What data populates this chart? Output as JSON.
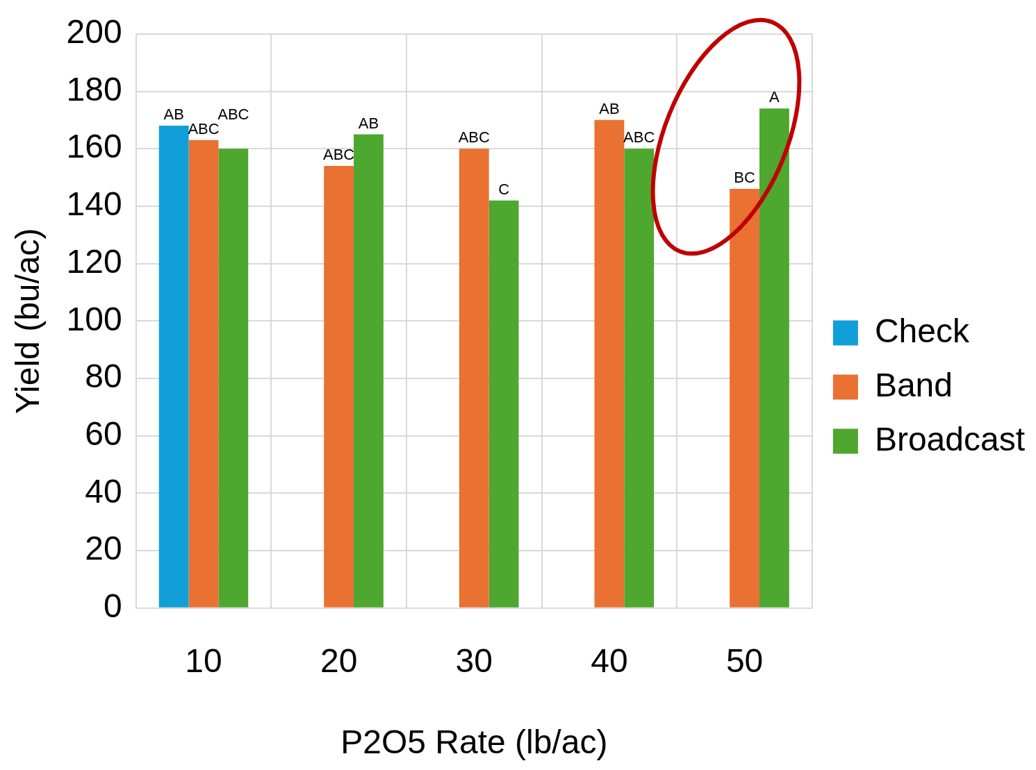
{
  "chart_data": {
    "type": "bar",
    "xlabel": "P2O5 Rate (lb/ac)",
    "ylabel": "Yield (bu/ac)",
    "categories": [
      "10",
      "20",
      "30",
      "40",
      "50"
    ],
    "series": [
      {
        "name": "Check",
        "color": "#119fd8",
        "values": [
          168,
          null,
          null,
          null,
          null
        ],
        "value_labels": [
          "AB",
          null,
          null,
          null,
          null
        ]
      },
      {
        "name": "Band",
        "color": "#e97132",
        "values": [
          163,
          154,
          160,
          170,
          146
        ],
        "value_labels": [
          "ABC",
          "ABC",
          "ABC",
          "AB",
          "BC"
        ]
      },
      {
        "name": "Broadcast",
        "color": "#4ea72e",
        "values": [
          160,
          165,
          142,
          160,
          174
        ],
        "value_labels": [
          "ABC",
          "AB",
          "C",
          "ABC",
          "A"
        ]
      }
    ],
    "ylim": [
      0,
      200
    ],
    "yticks": [
      0,
      20,
      40,
      60,
      80,
      100,
      120,
      140,
      160,
      180,
      200
    ],
    "grid": true,
    "legend": "right"
  }
}
